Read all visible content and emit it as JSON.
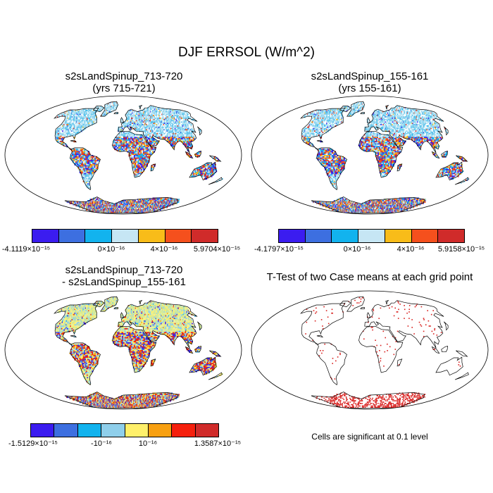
{
  "title": "DJF ERRSOL (W/m^2)",
  "panels": [
    {
      "title_line1": "s2sLandSpinup_713-720",
      "title_line2": "(yrs 715-721)",
      "palette": [
        "#3b1cf0",
        "#3d6fe0",
        "#12b3ee",
        "#c6e6f4",
        "#f8bc19",
        "#f5501d",
        "#d02b2a"
      ],
      "land_palette": [
        "#a9e0f2",
        "#c6e6f4",
        "#7fd0ee",
        "#ffffff",
        "#5ec3ec"
      ],
      "tropic_palette": [
        "#f8bc19",
        "#f5501d",
        "#d02b2a",
        "#3d6fe0",
        "#3b1cf0",
        "#c6e6f4",
        "#12b3ee"
      ],
      "labels": [
        "-4.1119×10⁻¹⁵",
        "0×10⁻¹⁶",
        "4×10⁻¹⁶",
        "5.9704×10⁻¹⁵"
      ]
    },
    {
      "title_line1": "s2sLandSpinup_155-161",
      "title_line2": "(yrs 155-161)",
      "palette": [
        "#3b1cf0",
        "#3d6fe0",
        "#12b3ee",
        "#c6e6f4",
        "#f8bc19",
        "#f5501d",
        "#d02b2a"
      ],
      "land_palette": [
        "#a9e0f2",
        "#c6e6f4",
        "#7fd0ee",
        "#ffffff",
        "#5ec3ec"
      ],
      "tropic_palette": [
        "#f8bc19",
        "#f5501d",
        "#d02b2a",
        "#3d6fe0",
        "#3b1cf0",
        "#c6e6f4",
        "#12b3ee"
      ],
      "labels": [
        "-4.1797×10⁻¹⁵",
        "0×10⁻¹⁶",
        "4×10⁻¹⁶",
        "5.9158×10⁻¹⁵"
      ]
    },
    {
      "title_line1": "s2sLandSpinup_713-720",
      "title_line2": "- s2sLandSpinup_155-161",
      "palette": [
        "#3b1cf0",
        "#3d6fe0",
        "#12b3ee",
        "#8fcfeb",
        "#fff06a",
        "#f8a011",
        "#f5200d",
        "#d02b2a"
      ],
      "land_palette": [
        "#d6ec98",
        "#fff06a",
        "#8fcfeb",
        "#c3e6a4",
        "#eef0a0"
      ],
      "tropic_palette": [
        "#3b1cf0",
        "#3d6fe0",
        "#d02b2a",
        "#f8a011",
        "#fff06a",
        "#8fcfeb",
        "#f5200d"
      ],
      "labels": [
        "-1.5129×10⁻¹⁵",
        "-10⁻¹⁶",
        "10⁻¹⁶",
        "1.3587×10⁻¹⁵"
      ]
    },
    {
      "title_line1": "T-Test of two Case means at each grid point",
      "title_line2": "",
      "note": "Cells are significant at 0.1 level"
    }
  ]
}
